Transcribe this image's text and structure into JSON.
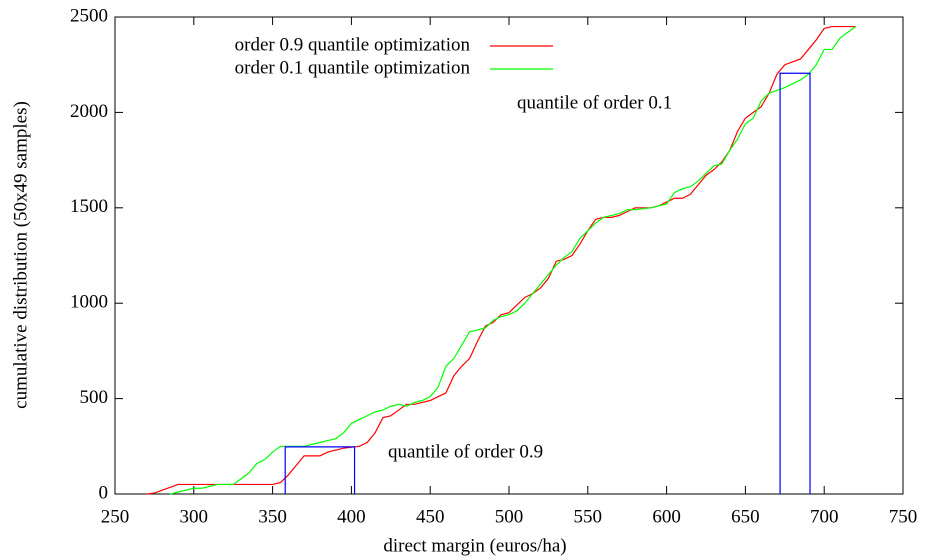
{
  "chart_data": {
    "type": "line",
    "xlabel": "direct margin (euros/ha)",
    "ylabel": "cumulative distribution (50x49 samples)",
    "xlim": [
      250,
      750
    ],
    "xticks": [
      250,
      300,
      350,
      400,
      450,
      500,
      550,
      600,
      650,
      700,
      750
    ],
    "ylim": [
      0,
      2500
    ],
    "yticks": [
      0,
      500,
      1000,
      1500,
      2000,
      2500
    ],
    "grid": false,
    "legend": "top-left",
    "annotations": [
      "quantile of order 0.1",
      "quantile of order 0.9"
    ],
    "series": [
      {
        "name": "order 0.9 quantile optimization",
        "color": "#ff0000",
        "x": [
          270,
          275,
          290,
          300,
          350,
          355,
          360,
          365,
          370,
          380,
          385,
          395,
          405,
          410,
          415,
          420,
          425,
          430,
          435,
          440,
          445,
          450,
          455,
          460,
          465,
          470,
          475,
          480,
          485,
          490,
          495,
          500,
          505,
          510,
          515,
          520,
          525,
          530,
          535,
          540,
          545,
          550,
          555,
          560,
          565,
          570,
          575,
          580,
          590,
          595,
          600,
          605,
          610,
          615,
          620,
          625,
          630,
          635,
          640,
          645,
          650,
          655,
          660,
          665,
          670,
          675,
          685,
          690,
          695,
          700,
          705,
          720
        ],
        "values": [
          0,
          5,
          50,
          50,
          50,
          60,
          100,
          150,
          200,
          200,
          220,
          240,
          250,
          270,
          320,
          400,
          410,
          440,
          470,
          470,
          480,
          490,
          510,
          530,
          620,
          670,
          710,
          800,
          880,
          900,
          940,
          950,
          990,
          1030,
          1050,
          1080,
          1130,
          1220,
          1230,
          1250,
          1310,
          1380,
          1440,
          1450,
          1450,
          1460,
          1480,
          1500,
          1500,
          1510,
          1530,
          1550,
          1550,
          1570,
          1620,
          1670,
          1700,
          1740,
          1800,
          1900,
          1970,
          2000,
          2030,
          2100,
          2200,
          2250,
          2280,
          2330,
          2380,
          2440,
          2450,
          2450
        ]
      },
      {
        "name": "order 0.1 quantile optimization",
        "color": "#00ff00",
        "x": [
          285,
          300,
          305,
          310,
          315,
          325,
          330,
          335,
          340,
          345,
          350,
          355,
          360,
          370,
          375,
          380,
          385,
          390,
          395,
          400,
          405,
          410,
          415,
          420,
          425,
          430,
          435,
          440,
          445,
          450,
          455,
          460,
          465,
          470,
          475,
          480,
          485,
          490,
          495,
          500,
          505,
          510,
          515,
          520,
          525,
          530,
          535,
          540,
          545,
          550,
          555,
          560,
          565,
          570,
          575,
          580,
          590,
          595,
          600,
          605,
          610,
          615,
          620,
          625,
          630,
          635,
          640,
          645,
          650,
          655,
          660,
          665,
          675,
          685,
          690,
          695,
          700,
          705,
          710,
          720
        ],
        "values": [
          0,
          30,
          30,
          40,
          50,
          50,
          80,
          110,
          160,
          180,
          220,
          250,
          250,
          250,
          260,
          270,
          280,
          290,
          320,
          370,
          390,
          410,
          430,
          440,
          460,
          470,
          460,
          480,
          490,
          510,
          560,
          670,
          710,
          780,
          850,
          860,
          870,
          910,
          930,
          940,
          960,
          1000,
          1050,
          1100,
          1150,
          1200,
          1240,
          1270,
          1340,
          1380,
          1420,
          1450,
          1460,
          1470,
          1490,
          1490,
          1500,
          1510,
          1520,
          1580,
          1600,
          1610,
          1640,
          1680,
          1720,
          1730,
          1800,
          1860,
          1940,
          1970,
          2060,
          2100,
          2130,
          2170,
          2200,
          2250,
          2330,
          2330,
          2390,
          2450
        ]
      },
      {
        "color": "#0000ff",
        "x": [
          358,
          358,
          402,
          402
        ],
        "values": [
          0,
          247,
          247,
          0
        ]
      },
      {
        "color": "#0000ff",
        "x": [
          672,
          672,
          691,
          691
        ],
        "values": [
          0,
          2205,
          2205,
          0
        ]
      }
    ]
  }
}
